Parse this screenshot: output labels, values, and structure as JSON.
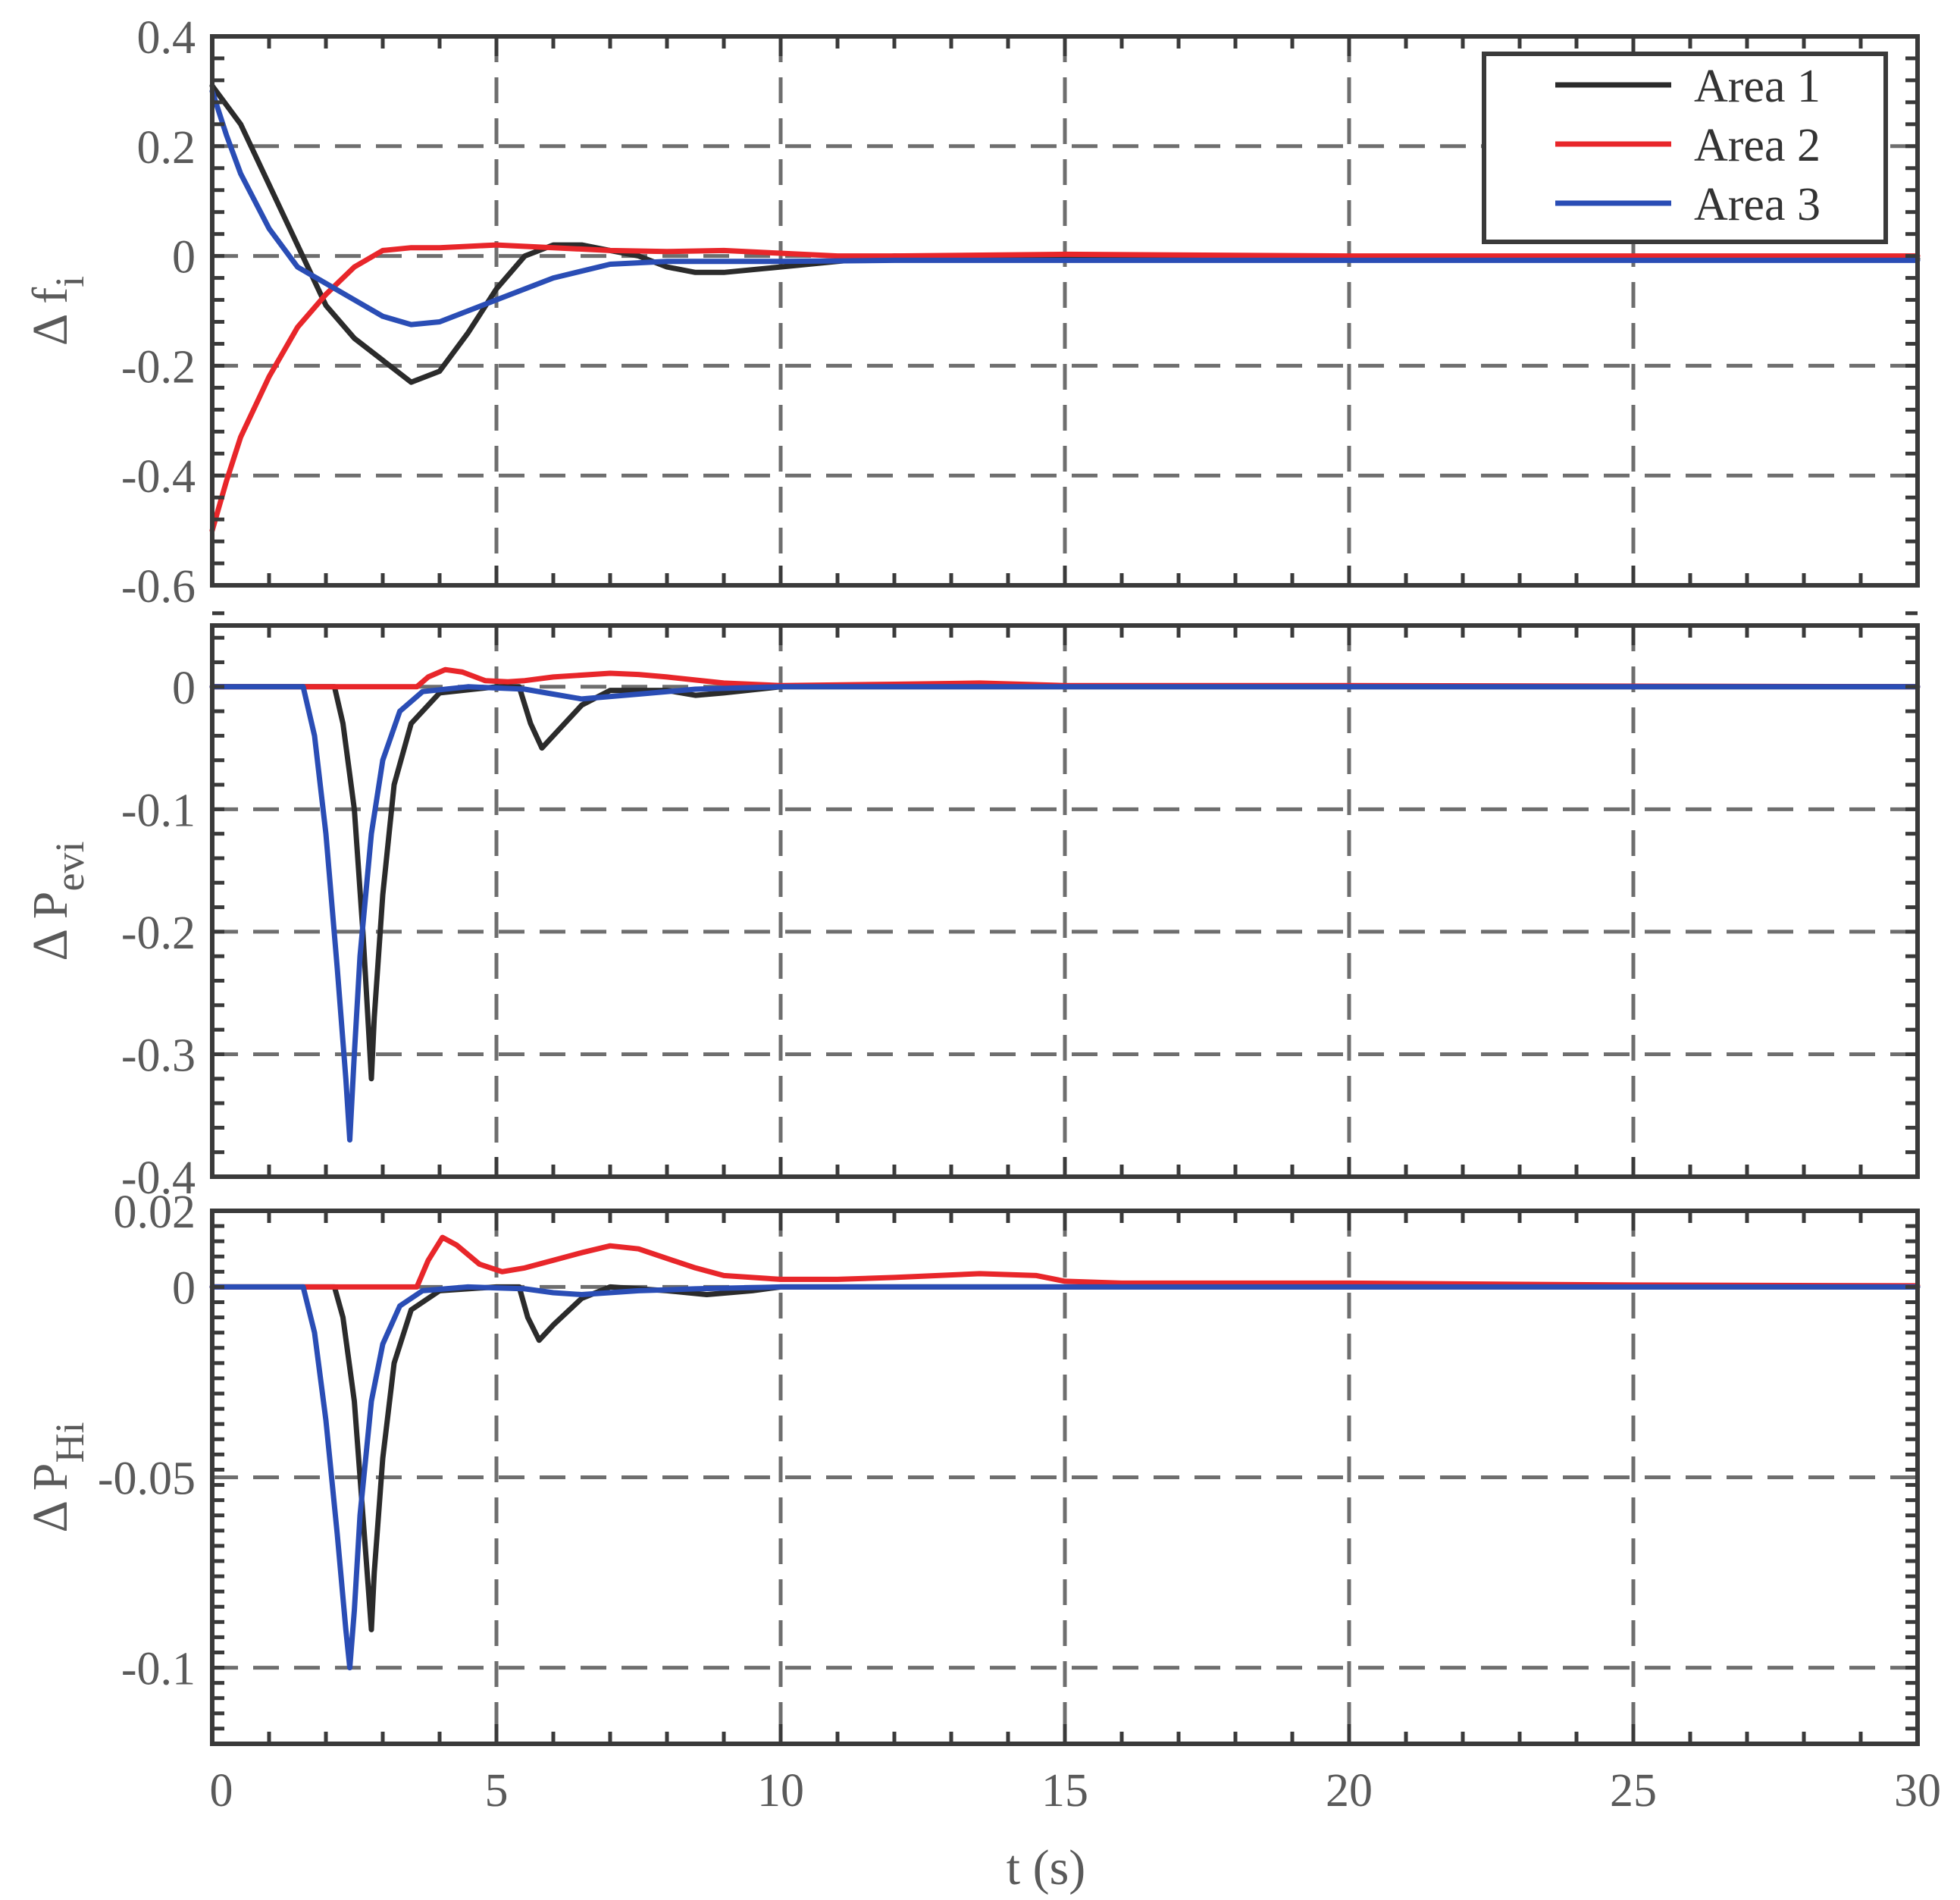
{
  "chart_data": [
    {
      "type": "line",
      "panel": "top",
      "ylabel": {
        "symbol": "Δ",
        "main": "f",
        "sub": "i"
      },
      "xlim": [
        0,
        30
      ],
      "ylim": [
        -0.6,
        0.4
      ],
      "yticks": [
        0.4,
        0.2,
        0,
        -0.2,
        -0.4,
        -0.6
      ],
      "ytick_labels": [
        "0.4",
        "0.2",
        "0",
        "-0.2",
        "-0.4",
        "-0.6"
      ],
      "grid": true,
      "legend": {
        "position": "top-right",
        "entries": [
          "Area 1",
          "Area 2",
          "Area 3"
        ]
      },
      "series": [
        {
          "name": "Area 1",
          "color": "#2b2b2b",
          "points": [
            [
              0,
              0.31
            ],
            [
              0.5,
              0.24
            ],
            [
              1,
              0.13
            ],
            [
              1.5,
              0.02
            ],
            [
              2,
              -0.09
            ],
            [
              2.5,
              -0.15
            ],
            [
              3,
              -0.19
            ],
            [
              3.5,
              -0.23
            ],
            [
              4,
              -0.21
            ],
            [
              4.5,
              -0.14
            ],
            [
              5,
              -0.06
            ],
            [
              5.5,
              0.0
            ],
            [
              6,
              0.02
            ],
            [
              6.5,
              0.02
            ],
            [
              7,
              0.01
            ],
            [
              7.5,
              0.0
            ],
            [
              8,
              -0.02
            ],
            [
              8.5,
              -0.03
            ],
            [
              9,
              -0.03
            ],
            [
              10,
              -0.02
            ],
            [
              11,
              -0.01
            ],
            [
              12,
              0.0
            ],
            [
              14,
              -0.005
            ],
            [
              16,
              -0.005
            ],
            [
              20,
              -0.005
            ],
            [
              30,
              -0.005
            ]
          ]
        },
        {
          "name": "Area 2",
          "color": "#e8262a",
          "points": [
            [
              0,
              -0.5
            ],
            [
              0.25,
              -0.41
            ],
            [
              0.5,
              -0.33
            ],
            [
              1,
              -0.22
            ],
            [
              1.5,
              -0.13
            ],
            [
              2,
              -0.07
            ],
            [
              2.5,
              -0.02
            ],
            [
              3,
              0.01
            ],
            [
              3.5,
              0.015
            ],
            [
              4,
              0.015
            ],
            [
              5,
              0.02
            ],
            [
              6,
              0.015
            ],
            [
              7,
              0.01
            ],
            [
              8,
              0.008
            ],
            [
              9,
              0.01
            ],
            [
              10,
              0.005
            ],
            [
              11,
              0.0
            ],
            [
              12,
              0.0
            ],
            [
              15,
              0.003
            ],
            [
              20,
              0.0
            ],
            [
              30,
              0.0
            ]
          ]
        },
        {
          "name": "Area 3",
          "color": "#2a4db5",
          "points": [
            [
              0,
              0.3
            ],
            [
              0.25,
              0.22
            ],
            [
              0.5,
              0.15
            ],
            [
              1,
              0.05
            ],
            [
              1.5,
              -0.02
            ],
            [
              2,
              -0.05
            ],
            [
              2.5,
              -0.08
            ],
            [
              3,
              -0.11
            ],
            [
              3.5,
              -0.125
            ],
            [
              4,
              -0.12
            ],
            [
              4.5,
              -0.1
            ],
            [
              5,
              -0.08
            ],
            [
              6,
              -0.04
            ],
            [
              7,
              -0.015
            ],
            [
              8,
              -0.01
            ],
            [
              9,
              -0.01
            ],
            [
              10,
              -0.01
            ],
            [
              12,
              -0.008
            ],
            [
              15,
              -0.008
            ],
            [
              20,
              -0.008
            ],
            [
              30,
              -0.008
            ]
          ]
        }
      ]
    },
    {
      "type": "line",
      "panel": "middle",
      "ylabel": {
        "symbol": "Δ",
        "main": "P",
        "sub": "evi"
      },
      "xlim": [
        0,
        30
      ],
      "ylim": [
        -0.4,
        0.05
      ],
      "yticks": [
        0,
        -0.1,
        -0.2,
        -0.3,
        -0.4
      ],
      "ytick_labels": [
        "0",
        "-0.1",
        "-0.2",
        "-0.3",
        "-0.4"
      ],
      "grid": true,
      "series": [
        {
          "name": "Area 1",
          "color": "#2b2b2b",
          "points": [
            [
              0,
              0
            ],
            [
              2.15,
              0
            ],
            [
              2.3,
              -0.03
            ],
            [
              2.5,
              -0.1
            ],
            [
              2.65,
              -0.2
            ],
            [
              2.75,
              -0.28
            ],
            [
              2.8,
              -0.32
            ],
            [
              2.85,
              -0.27
            ],
            [
              3,
              -0.17
            ],
            [
              3.2,
              -0.08
            ],
            [
              3.5,
              -0.03
            ],
            [
              4,
              -0.005
            ],
            [
              5,
              0.0
            ],
            [
              5.4,
              0.0
            ],
            [
              5.6,
              -0.03
            ],
            [
              5.8,
              -0.05
            ],
            [
              6,
              -0.04
            ],
            [
              6.5,
              -0.015
            ],
            [
              7,
              -0.003
            ],
            [
              8,
              -0.003
            ],
            [
              8.5,
              -0.007
            ],
            [
              9,
              -0.005
            ],
            [
              10,
              0.0
            ],
            [
              30,
              0.0
            ]
          ]
        },
        {
          "name": "Area 2",
          "color": "#e8262a",
          "points": [
            [
              0,
              0
            ],
            [
              3.6,
              0
            ],
            [
              3.8,
              0.008
            ],
            [
              4.1,
              0.014
            ],
            [
              4.4,
              0.012
            ],
            [
              4.8,
              0.005
            ],
            [
              5.2,
              0.004
            ],
            [
              5.5,
              0.005
            ],
            [
              6,
              0.008
            ],
            [
              7,
              0.011
            ],
            [
              7.5,
              0.01
            ],
            [
              8,
              0.008
            ],
            [
              9,
              0.003
            ],
            [
              10,
              0.001
            ],
            [
              12,
              0.002
            ],
            [
              13.5,
              0.003
            ],
            [
              15,
              0.001
            ],
            [
              20,
              0.001
            ],
            [
              30,
              0.0
            ]
          ]
        },
        {
          "name": "Area 3",
          "color": "#2a4db5",
          "points": [
            [
              0,
              0
            ],
            [
              1.6,
              0
            ],
            [
              1.8,
              -0.04
            ],
            [
              2,
              -0.12
            ],
            [
              2.2,
              -0.23
            ],
            [
              2.35,
              -0.32
            ],
            [
              2.42,
              -0.37
            ],
            [
              2.5,
              -0.3
            ],
            [
              2.6,
              -0.22
            ],
            [
              2.8,
              -0.12
            ],
            [
              3,
              -0.06
            ],
            [
              3.3,
              -0.02
            ],
            [
              3.7,
              -0.004
            ],
            [
              4.5,
              0.0
            ],
            [
              5.5,
              -0.002
            ],
            [
              6,
              -0.006
            ],
            [
              6.5,
              -0.01
            ],
            [
              7.5,
              -0.006
            ],
            [
              8.5,
              -0.002
            ],
            [
              10,
              0.0
            ],
            [
              30,
              0.0
            ]
          ]
        }
      ]
    },
    {
      "type": "line",
      "panel": "bottom",
      "ylabel": {
        "symbol": "Δ",
        "main": "P",
        "sub": "Hi"
      },
      "xlabel": "t (s)",
      "xlim": [
        0,
        30
      ],
      "ylim": [
        -0.12,
        0.02
      ],
      "xticks": [
        0,
        5,
        10,
        15,
        20,
        25,
        30
      ],
      "xtick_labels": [
        "0",
        "5",
        "10",
        "15",
        "20",
        "25",
        "30"
      ],
      "yticks": [
        0.02,
        0,
        -0.05,
        -0.1
      ],
      "ytick_labels": [
        "0.02",
        "0",
        "-0.05",
        "-0.1"
      ],
      "grid": true,
      "series": [
        {
          "name": "Area 1",
          "color": "#2b2b2b",
          "points": [
            [
              0,
              0
            ],
            [
              2.15,
              0
            ],
            [
              2.3,
              -0.008
            ],
            [
              2.5,
              -0.03
            ],
            [
              2.65,
              -0.06
            ],
            [
              2.75,
              -0.08
            ],
            [
              2.8,
              -0.09
            ],
            [
              2.85,
              -0.075
            ],
            [
              3,
              -0.045
            ],
            [
              3.2,
              -0.02
            ],
            [
              3.5,
              -0.006
            ],
            [
              4,
              -0.001
            ],
            [
              5,
              0.0
            ],
            [
              5.4,
              0.0
            ],
            [
              5.55,
              -0.008
            ],
            [
              5.75,
              -0.014
            ],
            [
              6,
              -0.01
            ],
            [
              6.5,
              -0.003
            ],
            [
              7,
              0.0
            ],
            [
              8,
              -0.001
            ],
            [
              8.7,
              -0.002
            ],
            [
              9.5,
              -0.001
            ],
            [
              10,
              0.0
            ],
            [
              30,
              0.0
            ]
          ]
        },
        {
          "name": "Area 2",
          "color": "#e8262a",
          "points": [
            [
              0,
              0
            ],
            [
              3.6,
              0
            ],
            [
              3.8,
              0.007
            ],
            [
              4.05,
              0.013
            ],
            [
              4.3,
              0.011
            ],
            [
              4.7,
              0.006
            ],
            [
              5.1,
              0.004
            ],
            [
              5.5,
              0.005
            ],
            [
              6,
              0.007
            ],
            [
              6.5,
              0.009
            ],
            [
              7,
              0.0108
            ],
            [
              7.5,
              0.01
            ],
            [
              8,
              0.0075
            ],
            [
              8.5,
              0.005
            ],
            [
              9,
              0.003
            ],
            [
              10,
              0.002
            ],
            [
              11,
              0.002
            ],
            [
              12,
              0.0025
            ],
            [
              13.5,
              0.0035
            ],
            [
              14.5,
              0.003
            ],
            [
              15,
              0.0015
            ],
            [
              16,
              0.001
            ],
            [
              20,
              0.001
            ],
            [
              25,
              0.0005
            ],
            [
              30,
              0.0003
            ]
          ]
        },
        {
          "name": "Area 3",
          "color": "#2a4db5",
          "points": [
            [
              0,
              0
            ],
            [
              1.6,
              0
            ],
            [
              1.8,
              -0.012
            ],
            [
              2,
              -0.035
            ],
            [
              2.2,
              -0.065
            ],
            [
              2.35,
              -0.09
            ],
            [
              2.42,
              -0.1
            ],
            [
              2.5,
              -0.085
            ],
            [
              2.6,
              -0.06
            ],
            [
              2.8,
              -0.03
            ],
            [
              3,
              -0.015
            ],
            [
              3.3,
              -0.005
            ],
            [
              3.7,
              -0.001
            ],
            [
              4.5,
              0.0
            ],
            [
              5.5,
              -0.0005
            ],
            [
              6,
              -0.0015
            ],
            [
              6.5,
              -0.002
            ],
            [
              7.5,
              -0.001
            ],
            [
              8.5,
              -0.0005
            ],
            [
              10,
              0.0
            ],
            [
              30,
              0.0
            ]
          ]
        }
      ]
    }
  ]
}
